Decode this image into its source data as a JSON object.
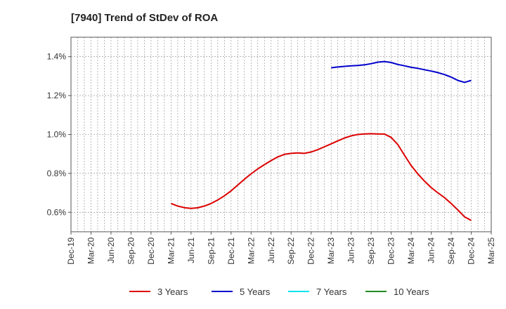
{
  "chart_data": {
    "type": "line",
    "title": "[7940]  Trend of StDev of ROA",
    "xlabel": "",
    "ylabel": "",
    "x_ticks": [
      "Dec-19",
      "Mar-20",
      "Jun-20",
      "Sep-20",
      "Dec-20",
      "Mar-21",
      "Jun-21",
      "Sep-21",
      "Dec-21",
      "Mar-22",
      "Jun-22",
      "Sep-22",
      "Dec-22",
      "Mar-23",
      "Jun-23",
      "Sep-23",
      "Dec-23",
      "Mar-24",
      "Jun-24",
      "Sep-24",
      "Dec-24",
      "Mar-25"
    ],
    "ylim": [
      0.5,
      1.5
    ],
    "y_ticks": [
      {
        "value": 0.6,
        "label": "0.6%"
      },
      {
        "value": 0.8,
        "label": "0.8%"
      },
      {
        "value": 1.0,
        "label": "1.0%"
      },
      {
        "value": 1.2,
        "label": "1.2%"
      },
      {
        "value": 1.4,
        "label": "1.4%"
      }
    ],
    "grid": true,
    "legend_position": "bottom",
    "series": [
      {
        "name": "3 Years",
        "color": "#dd0000",
        "x": [
          "Mar-21",
          "Apr-21",
          "May-21",
          "Jun-21",
          "Jul-21",
          "Aug-21",
          "Sep-21",
          "Oct-21",
          "Nov-21",
          "Dec-21",
          "Jan-22",
          "Feb-22",
          "Mar-22",
          "Apr-22",
          "May-22",
          "Jun-22",
          "Jul-22",
          "Aug-22",
          "Sep-22",
          "Oct-22",
          "Nov-22",
          "Dec-22",
          "Jan-23",
          "Feb-23",
          "Mar-23",
          "Apr-23",
          "May-23",
          "Jun-23",
          "Jul-23",
          "Aug-23",
          "Sep-23",
          "Oct-23",
          "Nov-23",
          "Dec-23",
          "Jan-24",
          "Feb-24",
          "Mar-24",
          "Apr-24",
          "May-24",
          "Jun-24",
          "Jul-24",
          "Aug-24",
          "Sep-24",
          "Oct-24",
          "Nov-24",
          "Dec-24"
        ],
        "values": [
          0.645,
          0.632,
          0.624,
          0.62,
          0.623,
          0.632,
          0.645,
          0.663,
          0.685,
          0.71,
          0.74,
          0.77,
          0.798,
          0.823,
          0.845,
          0.866,
          0.885,
          0.898,
          0.903,
          0.905,
          0.903,
          0.91,
          0.922,
          0.937,
          0.952,
          0.967,
          0.982,
          0.993,
          1.0,
          1.003,
          1.004,
          1.003,
          1.002,
          0.985,
          0.948,
          0.893,
          0.84,
          0.797,
          0.76,
          0.727,
          0.7,
          0.675,
          0.645,
          0.612,
          0.577,
          0.558
        ]
      },
      {
        "name": "5 Years",
        "color": "#0000cc",
        "x": [
          "Mar-23",
          "Apr-23",
          "May-23",
          "Jun-23",
          "Jul-23",
          "Aug-23",
          "Sep-23",
          "Oct-23",
          "Nov-23",
          "Dec-23",
          "Jan-24",
          "Feb-24",
          "Mar-24",
          "Apr-24",
          "May-24",
          "Jun-24",
          "Jul-24",
          "Aug-24",
          "Sep-24",
          "Oct-24",
          "Nov-24",
          "Dec-24"
        ],
        "values": [
          1.343,
          1.347,
          1.35,
          1.353,
          1.355,
          1.358,
          1.364,
          1.372,
          1.375,
          1.37,
          1.36,
          1.353,
          1.345,
          1.34,
          1.333,
          1.326,
          1.318,
          1.308,
          1.295,
          1.278,
          1.268,
          1.278
        ]
      },
      {
        "name": "7 Years",
        "color": "#00e5ee",
        "x": [],
        "values": []
      },
      {
        "name": "10 Years",
        "color": "#228b22",
        "x": [],
        "values": []
      }
    ]
  }
}
